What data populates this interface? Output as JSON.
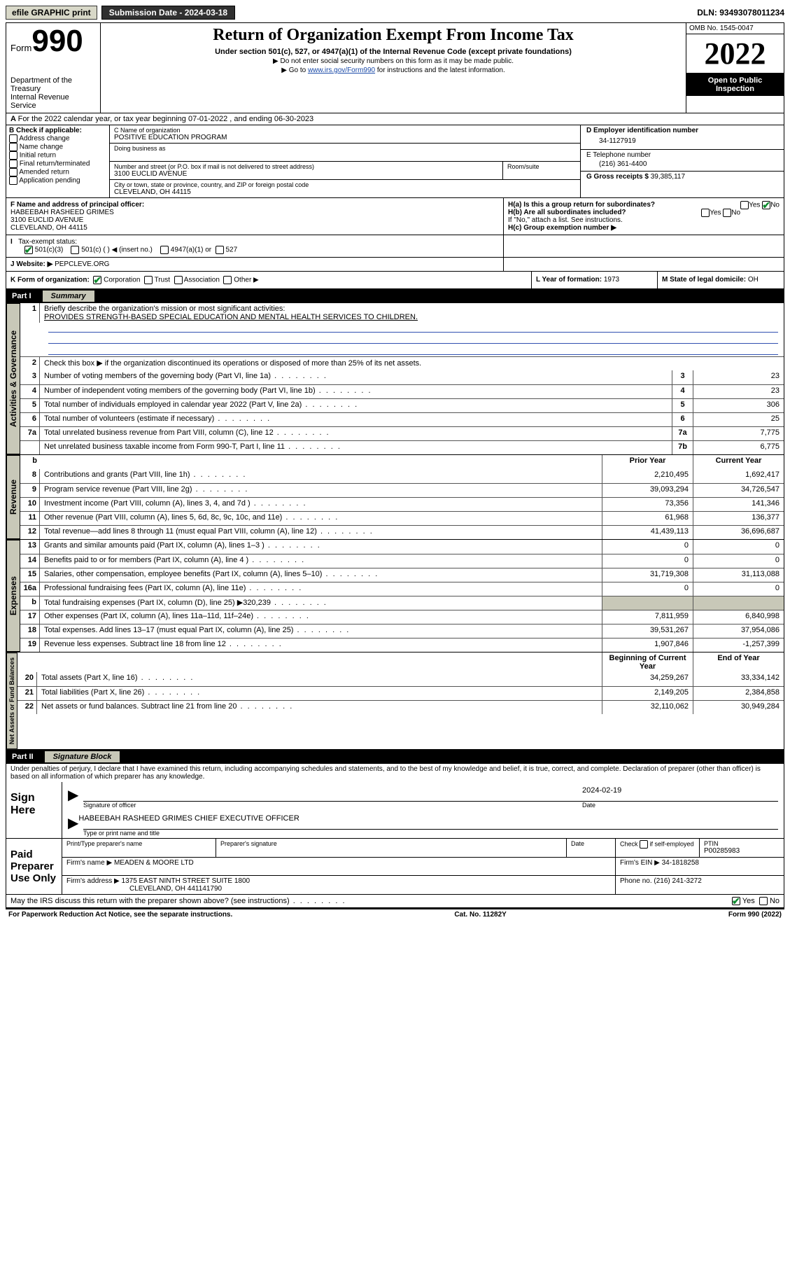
{
  "topbar": {
    "efile": "efile GRAPHIC print",
    "submission_label": "Submission Date - 2024-03-18",
    "dln_label": "DLN: 93493078011234"
  },
  "header": {
    "form_label": "Form",
    "form_num": "990",
    "dept": "Department of the Treasury",
    "irs": "Internal Revenue Service",
    "title": "Return of Organization Exempt From Income Tax",
    "sub": "Under section 501(c), 527, or 4947(a)(1) of the Internal Revenue Code (except private foundations)",
    "note1": "▶ Do not enter social security numbers on this form as it may be made public.",
    "note2_pre": "▶ Go to ",
    "note2_link": "www.irs.gov/Form990",
    "note2_post": " for instructions and the latest information.",
    "omb": "OMB No. 1545-0047",
    "year": "2022",
    "open": "Open to Public Inspection"
  },
  "row_a": "For the 2022 calendar year, or tax year beginning 07-01-2022  , and ending 06-30-2023",
  "box_b": {
    "title": "B Check if applicable:",
    "items": [
      "Address change",
      "Name change",
      "Initial return",
      "Final return/terminated",
      "Amended return",
      "Application pending"
    ]
  },
  "box_c": {
    "label": "C Name of organization",
    "org": "POSITIVE EDUCATION PROGRAM",
    "dba_label": "Doing business as",
    "addr_label": "Number and street (or P.O. box if mail is not delivered to street address)",
    "room_label": "Room/suite",
    "addr": "3100 EUCLID AVENUE",
    "city_label": "City or town, state or province, country, and ZIP or foreign postal code",
    "city": "CLEVELAND, OH  44115"
  },
  "box_d": {
    "label": "D Employer identification number",
    "val": "34-1127919"
  },
  "box_e": {
    "label": "E Telephone number",
    "val": "(216) 361-4400"
  },
  "box_g": {
    "label": "G Gross receipts $",
    "val": "39,385,117"
  },
  "box_f": {
    "label": "F  Name and address of principal officer:",
    "name": "HABEEBAH RASHEED GRIMES",
    "addr1": "3100 EUCLID AVENUE",
    "addr2": "CLEVELAND, OH  44115"
  },
  "box_h": {
    "a": "H(a)  Is this a group return for subordinates?",
    "b": "H(b)  Are all subordinates included?",
    "b_note": "If \"No,\" attach a list. See instructions.",
    "c": "H(c)  Group exemption number ▶",
    "yes": "Yes",
    "no": "No"
  },
  "row_i": {
    "label": "I",
    "text": "Tax-exempt status:",
    "o1": "501(c)(3)",
    "o2": "501(c) (  ) ◀ (insert no.)",
    "o3": "4947(a)(1) or",
    "o4": "527"
  },
  "row_j": {
    "label": "J",
    "text": "Website: ▶",
    "val": "PEPCLEVE.ORG"
  },
  "row_k": {
    "label": "K Form of organization:",
    "o1": "Corporation",
    "o2": "Trust",
    "o3": "Association",
    "o4": "Other ▶"
  },
  "row_l": {
    "label": "L Year of formation:",
    "val": "1973"
  },
  "row_m": {
    "label": "M State of legal domicile:",
    "val": "OH"
  },
  "part1": {
    "label": "Part I",
    "title": "Summary"
  },
  "summary": {
    "q1": "Briefly describe the organization's mission or most significant activities:",
    "mission": "PROVIDES STRENGTH-BASED SPECIAL EDUCATION AND MENTAL HEALTH SERVICES TO CHILDREN.",
    "q2": "Check this box ▶     if the organization discontinued its operations or disposed of more than 25% of its net assets."
  },
  "gov_lines": [
    {
      "n": "3",
      "d": "Number of voting members of the governing body (Part VI, line 1a)",
      "box": "3",
      "v": "23"
    },
    {
      "n": "4",
      "d": "Number of independent voting members of the governing body (Part VI, line 1b)",
      "box": "4",
      "v": "23"
    },
    {
      "n": "5",
      "d": "Total number of individuals employed in calendar year 2022 (Part V, line 2a)",
      "box": "5",
      "v": "306"
    },
    {
      "n": "6",
      "d": "Total number of volunteers (estimate if necessary)",
      "box": "6",
      "v": "25"
    },
    {
      "n": "7a",
      "d": "Total unrelated business revenue from Part VIII, column (C), line 12",
      "box": "7a",
      "v": "7,775"
    },
    {
      "n": "",
      "d": "Net unrelated business taxable income from Form 990-T, Part I, line 11",
      "box": "7b",
      "v": "6,775"
    }
  ],
  "cols": {
    "prior": "Prior Year",
    "current": "Current Year",
    "boy": "Beginning of Current Year",
    "eoy": "End of Year"
  },
  "revenue": [
    {
      "n": "8",
      "d": "Contributions and grants (Part VIII, line 1h)",
      "p": "2,210,495",
      "c": "1,692,417"
    },
    {
      "n": "9",
      "d": "Program service revenue (Part VIII, line 2g)",
      "p": "39,093,294",
      "c": "34,726,547"
    },
    {
      "n": "10",
      "d": "Investment income (Part VIII, column (A), lines 3, 4, and 7d )",
      "p": "73,356",
      "c": "141,346"
    },
    {
      "n": "11",
      "d": "Other revenue (Part VIII, column (A), lines 5, 6d, 8c, 9c, 10c, and 11e)",
      "p": "61,968",
      "c": "136,377"
    },
    {
      "n": "12",
      "d": "Total revenue—add lines 8 through 11 (must equal Part VIII, column (A), line 12)",
      "p": "41,439,113",
      "c": "36,696,687"
    }
  ],
  "expenses": [
    {
      "n": "13",
      "d": "Grants and similar amounts paid (Part IX, column (A), lines 1–3 )",
      "p": "0",
      "c": "0"
    },
    {
      "n": "14",
      "d": "Benefits paid to or for members (Part IX, column (A), line 4 )",
      "p": "0",
      "c": "0"
    },
    {
      "n": "15",
      "d": "Salaries, other compensation, employee benefits (Part IX, column (A), lines 5–10)",
      "p": "31,719,308",
      "c": "31,113,088"
    },
    {
      "n": "16a",
      "d": "Professional fundraising fees (Part IX, column (A), line 11e)",
      "p": "0",
      "c": "0"
    },
    {
      "n": "b",
      "d": "Total fundraising expenses (Part IX, column (D), line 25) ▶320,239",
      "p": "",
      "c": "",
      "shade": true
    },
    {
      "n": "17",
      "d": "Other expenses (Part IX, column (A), lines 11a–11d, 11f–24e)",
      "p": "7,811,959",
      "c": "6,840,998"
    },
    {
      "n": "18",
      "d": "Total expenses. Add lines 13–17 (must equal Part IX, column (A), line 25)",
      "p": "39,531,267",
      "c": "37,954,086"
    },
    {
      "n": "19",
      "d": "Revenue less expenses. Subtract line 18 from line 12",
      "p": "1,907,846",
      "c": "-1,257,399"
    }
  ],
  "netassets": [
    {
      "n": "20",
      "d": "Total assets (Part X, line 16)",
      "p": "34,259,267",
      "c": "33,334,142"
    },
    {
      "n": "21",
      "d": "Total liabilities (Part X, line 26)",
      "p": "2,149,205",
      "c": "2,384,858"
    },
    {
      "n": "22",
      "d": "Net assets or fund balances. Subtract line 21 from line 20",
      "p": "32,110,062",
      "c": "30,949,284"
    }
  ],
  "sidelabels": {
    "gov": "Activities & Governance",
    "rev": "Revenue",
    "exp": "Expenses",
    "na": "Net Assets or Fund Balances"
  },
  "part2": {
    "label": "Part II",
    "title": "Signature Block"
  },
  "sig": {
    "decl": "Under penalties of perjury, I declare that I have examined this return, including accompanying schedules and statements, and to the best of my knowledge and belief, it is true, correct, and complete. Declaration of preparer (other than officer) is based on all information of which preparer has any knowledge.",
    "sign_here": "Sign Here",
    "officer_cap": "Signature of officer",
    "date_cap": "Date",
    "date_val": "2024-02-19",
    "officer_name": "HABEEBAH RASHEED GRIMES  CHIEF EXECUTIVE OFFICER",
    "name_cap": "Type or print name and title",
    "paid": "Paid Preparer Use Only",
    "p_name_cap": "Print/Type preparer's name",
    "p_sig_cap": "Preparer's signature",
    "p_date_cap": "Date",
    "p_check": "Check      if self-employed",
    "ptin_cap": "PTIN",
    "ptin": "P00285983",
    "firm_name_cap": "Firm's name    ▶",
    "firm_name": "MEADEN & MOORE LTD",
    "firm_ein_cap": "Firm's EIN ▶",
    "firm_ein": "34-1818258",
    "firm_addr_cap": "Firm's address ▶",
    "firm_addr1": "1375 EAST NINTH STREET SUITE 1800",
    "firm_addr2": "CLEVELAND, OH  441141790",
    "phone_cap": "Phone no.",
    "phone": "(216) 241-3272",
    "discuss": "May the IRS discuss this return with the preparer shown above? (see instructions)",
    "yes": "Yes",
    "no": "No"
  },
  "footer": {
    "left": "For Paperwork Reduction Act Notice, see the separate instructions.",
    "mid": "Cat. No. 11282Y",
    "right": "Form 990 (2022)"
  }
}
